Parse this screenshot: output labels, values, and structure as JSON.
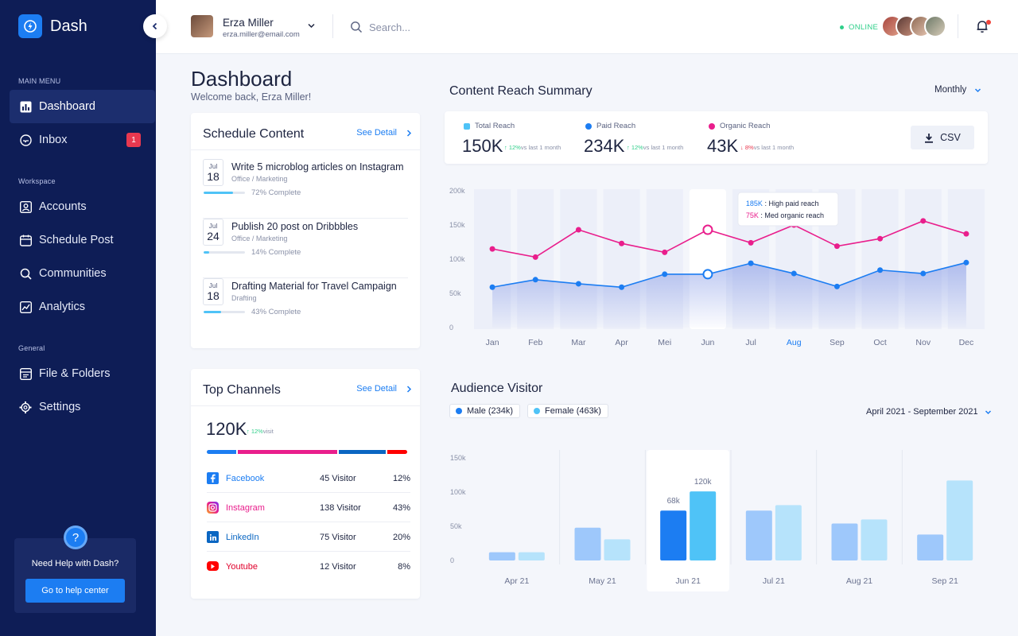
{
  "app": {
    "name": "Dash"
  },
  "sidebar": {
    "main_menu_label": "MAIN MENU",
    "workspace_label": "Workspace",
    "general_label": "General",
    "items": [
      {
        "label": "Dashboard",
        "icon": "bar-chart-icon"
      },
      {
        "label": "Inbox",
        "icon": "inbox-icon",
        "badge": "1"
      },
      {
        "label": "Accounts",
        "icon": "user-icon"
      },
      {
        "label": "Schedule Post",
        "icon": "calendar-icon"
      },
      {
        "label": "Communities",
        "icon": "search-icon"
      },
      {
        "label": "Analytics",
        "icon": "line-chart-icon"
      },
      {
        "label": "File & Folders",
        "icon": "folder-icon"
      },
      {
        "label": "Settings",
        "icon": "gear-icon"
      }
    ],
    "help": {
      "icon_text": "?",
      "text": "Need Help with Dash?",
      "button": "Go to help center"
    }
  },
  "topbar": {
    "user_name": "Erza Miller",
    "user_email": "erza.miller@email.com",
    "search_placeholder": "Search...",
    "status": "ONLINE"
  },
  "page": {
    "title": "Dashboard",
    "subtitle": "Welcome back, Erza Miller!"
  },
  "schedule": {
    "title": "Schedule Content",
    "see_detail": "See Detail",
    "items": [
      {
        "month": "Jul",
        "day": "18",
        "title": "Write 5 microblog articles on Instagram",
        "category": "Office / Marketing",
        "progress": 72,
        "progress_text": "72% Complete"
      },
      {
        "month": "Jul",
        "day": "24",
        "title": "Publish 20 post on Dribbbles",
        "category": "Office / Marketing",
        "progress": 14,
        "progress_text": "14% Complete"
      },
      {
        "month": "Jul",
        "day": "18",
        "title": "Drafting Material for Travel Campaign",
        "category": "Drafting",
        "progress": 43,
        "progress_text": "43% Complete"
      }
    ]
  },
  "channels": {
    "title": "Top Channels",
    "see_detail": "See Detail",
    "total": "120K",
    "growth": "12%",
    "growth_suffix": "visit",
    "rows": [
      {
        "name": "Facebook",
        "visitors": "45 Visitor",
        "pct": "12%",
        "color": "#1c7df2",
        "icon": "facebook-icon"
      },
      {
        "name": "Instagram",
        "visitors": "138 Visitor",
        "pct": "43%",
        "color": "#e91e8c",
        "icon": "instagram-icon"
      },
      {
        "name": "LinkedIn",
        "visitors": "75 Visitor",
        "pct": "20%",
        "color": "#0a66c2",
        "icon": "linkedin-icon"
      },
      {
        "name": "Youtube",
        "visitors": "12 Visitor",
        "pct": "8%",
        "color": "#ff0000",
        "icon": "youtube-icon"
      }
    ],
    "bar_shares": [
      15,
      51,
      24,
      10
    ]
  },
  "reach": {
    "title": "Content Reach Summary",
    "period": "Monthly",
    "csv_label": "CSV",
    "kpis": [
      {
        "label": "Total Reach",
        "value": "150K",
        "growth": "12%",
        "direction": "up",
        "suffix": "vs last 1 month",
        "color": "#4fc3f7"
      },
      {
        "label": "Paid Reach",
        "value": "234K",
        "growth": "12%",
        "direction": "up",
        "suffix": "vs last 1 month",
        "color": "#1c7df2"
      },
      {
        "label": "Organic Reach",
        "value": "43K",
        "growth": "8%",
        "direction": "down",
        "suffix": "vs last 1 month",
        "color": "#e91e8c"
      }
    ]
  },
  "audience": {
    "title": "Audience Visitor",
    "legend": [
      {
        "label": "Male (234k)",
        "color": "#1c7df2"
      },
      {
        "label": "Female (463k)",
        "color": "#4fc3f7"
      }
    ],
    "range": "April 2021 - September 2021"
  },
  "chart_data": [
    {
      "type": "line",
      "x": [
        "Jan",
        "Feb",
        "Mar",
        "Apr",
        "Mei",
        "Jun",
        "Jul",
        "Aug",
        "Sep",
        "Oct",
        "Nov",
        "Dec"
      ],
      "y_ticks": [
        "0",
        "50k",
        "100k",
        "150k",
        "200k"
      ],
      "ylim": [
        0,
        200
      ],
      "highlight_index": 5,
      "active_label_index": 7,
      "series": [
        {
          "values": [
            115,
            103,
            143,
            123,
            110,
            143,
            124,
            150,
            119,
            130,
            156,
            137
          ],
          "color": "#e91e8c"
        },
        {
          "values": [
            59,
            70,
            64,
            59,
            78,
            78,
            94,
            79,
            60,
            84,
            79,
            95
          ],
          "color": "#1c7df2"
        }
      ],
      "tooltip": [
        {
          "value": "185K",
          "text": " : High paid reach",
          "color": "#1c7df2"
        },
        {
          "value": "75K",
          "text": " : Med organic reach",
          "color": "#e91e8c"
        }
      ]
    },
    {
      "type": "bar",
      "categories": [
        "Apr 21",
        "May 21",
        "Jun 21",
        "Jul 21",
        "Aug 21",
        "Sep 21"
      ],
      "y_ticks": [
        "0",
        "50k",
        "100k",
        "150k"
      ],
      "ylim": [
        0,
        150
      ],
      "highlight_index": 2,
      "series": [
        {
          "values": [
            12,
            48,
            73,
            73,
            54,
            38
          ]
        },
        {
          "values": [
            12,
            31,
            101,
            81,
            60,
            117
          ]
        }
      ],
      "labels": [
        "68k",
        "120k"
      ]
    }
  ]
}
